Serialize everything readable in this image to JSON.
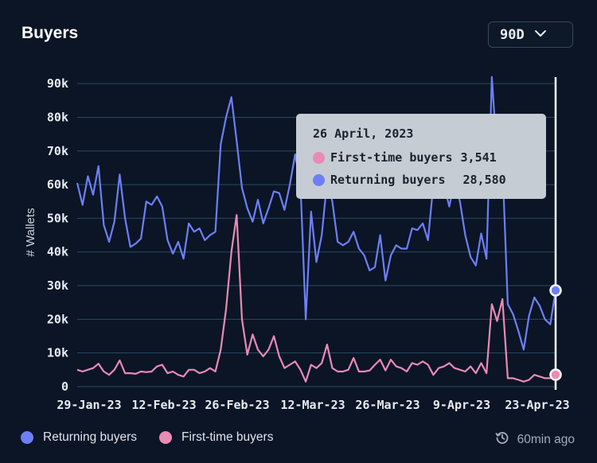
{
  "header": {
    "title": "Buyers",
    "range": "90D"
  },
  "legend": {
    "returning": "Returning buyers",
    "first_time": "First-time buyers"
  },
  "status": {
    "updated": "60min ago"
  },
  "colors": {
    "returning": "#6e7ff5",
    "first_time": "#e98bb5",
    "grid": "#2b4a63",
    "background": "#0b1526"
  },
  "tooltip": {
    "date": "26 April, 2023",
    "first_label": "First-time buyers",
    "first_value": "3,541",
    "returning_label": "Returning buyers",
    "returning_value": "28,580"
  },
  "chart_data": {
    "type": "line",
    "ylabel": "# Wallets",
    "ylim": [
      0,
      95000
    ],
    "yticks": [
      "0",
      "10k",
      "20k",
      "30k",
      "40k",
      "50k",
      "60k",
      "70k",
      "80k",
      "90k"
    ],
    "xticks": [
      "29-Jan-23",
      "12-Feb-23",
      "26-Feb-23",
      "12-Mar-23",
      "26-Mar-23",
      "9-Apr-23",
      "23-Apr-23"
    ],
    "x_start": "29-Jan-23",
    "x_end": "26-Apr-23",
    "grid": true,
    "legend_position": "bottom-left",
    "series": [
      {
        "name": "Returning buyers",
        "values": [
          60500,
          54000,
          62500,
          57000,
          65500,
          48000,
          43000,
          49000,
          63000,
          50000,
          41500,
          42500,
          44000,
          55000,
          54000,
          56500,
          53500,
          43500,
          39500,
          43000,
          38000,
          48500,
          46000,
          47000,
          43500,
          45000,
          46000,
          72000,
          80000,
          86000,
          73000,
          59000,
          53000,
          49000,
          55500,
          48500,
          53000,
          58000,
          57500,
          52500,
          60000,
          69000,
          60000,
          20000,
          52000,
          37000,
          45000,
          61000,
          55000,
          43000,
          42000,
          43000,
          46000,
          41000,
          39000,
          34500,
          35500,
          45000,
          31500,
          39000,
          42000,
          41000,
          41000,
          47000,
          46500,
          48500,
          43500,
          60000,
          56000,
          60000,
          53500,
          61000,
          55000,
          45000,
          38500,
          36000,
          45500,
          38000,
          92000,
          68000,
          66500,
          24500,
          21500,
          16500,
          11000,
          21000,
          26500,
          24000,
          20000,
          18500,
          28580
        ],
        "color": "#6e7ff5"
      },
      {
        "name": "First-time buyers",
        "values": [
          5000,
          4500,
          5000,
          5500,
          6800,
          4500,
          3500,
          5000,
          7800,
          4000,
          4000,
          3800,
          4500,
          4300,
          4500,
          6000,
          6500,
          4000,
          4500,
          3500,
          3000,
          5000,
          5000,
          4000,
          4500,
          5500,
          4500,
          11000,
          23000,
          40000,
          51000,
          20000,
          9500,
          15500,
          11000,
          9000,
          11000,
          15000,
          9000,
          5500,
          6500,
          7500,
          5000,
          1500,
          6500,
          5500,
          7000,
          12500,
          5500,
          4500,
          4500,
          5000,
          8500,
          4500,
          4500,
          4800,
          6500,
          8000,
          4800,
          8000,
          6000,
          5500,
          4500,
          7000,
          6500,
          7500,
          6500,
          3500,
          5500,
          6000,
          7000,
          5500,
          5000,
          4500,
          6000,
          4000,
          7000,
          4000,
          24500,
          19500,
          26000,
          2500,
          2500,
          2000,
          1500,
          2000,
          3500,
          3000,
          2500,
          2500,
          3541
        ],
        "color": "#e98bb5"
      }
    ]
  }
}
